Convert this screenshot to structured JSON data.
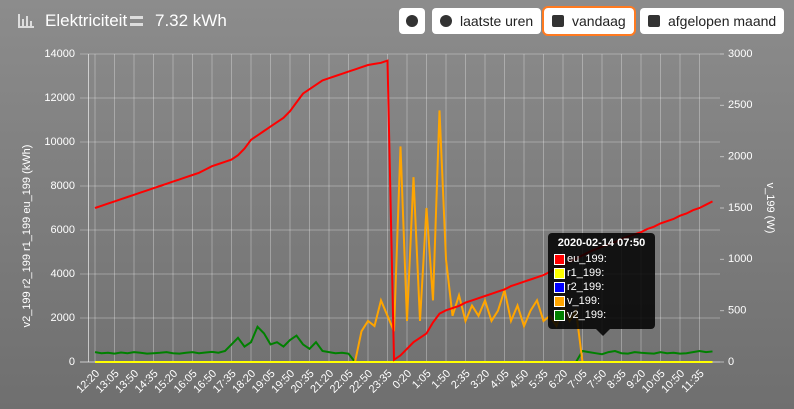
{
  "header": {
    "title": "Elektriciteit",
    "total": "7.32 kWh",
    "buttons": [
      "laatste uren",
      "vandaag",
      "afgelopen maand"
    ]
  },
  "chart_data": {
    "type": "line",
    "y_label": "v2_199 r2_199 r1_199 eu_199 (kWh)",
    "y2_label": "v_199 (W)",
    "categories": [
      "12:20",
      null,
      null,
      "13:05",
      null,
      null,
      "13:50",
      null,
      null,
      "14:35",
      null,
      null,
      "15:20",
      null,
      null,
      "16:05",
      null,
      null,
      "16:50",
      null,
      null,
      "17:35",
      null,
      null,
      "18:20",
      null,
      null,
      "19:05",
      null,
      null,
      "19:50",
      null,
      null,
      "20:35",
      null,
      null,
      "21:20",
      null,
      null,
      "22:05",
      null,
      null,
      "22:50",
      null,
      null,
      "23:35",
      null,
      null,
      "0:20",
      null,
      null,
      "1:05",
      null,
      null,
      "1:50",
      null,
      null,
      "2:35",
      null,
      null,
      "3:20",
      null,
      null,
      "4:05",
      null,
      null,
      "4:50",
      null,
      null,
      "5:35",
      null,
      null,
      "6:20",
      null,
      null,
      "7:05",
      null,
      null,
      "7:50",
      null,
      null,
      "8:35",
      null,
      null,
      "9:20",
      null,
      null,
      "10:05",
      null,
      null,
      "10:50",
      null,
      null,
      "11:35",
      null,
      null
    ],
    "ylim": [
      0,
      14000
    ],
    "yticks": [
      0,
      2000,
      4000,
      6000,
      8000,
      10000,
      12000,
      14000
    ],
    "y2lim": [
      0,
      3000
    ],
    "y2ticks": [
      0,
      500,
      1000,
      1500,
      2000,
      2500,
      3000
    ],
    "grid": true,
    "series": [
      {
        "name": "eu_199",
        "color": "#ff0000",
        "axis": "y",
        "values": [
          7000,
          7100,
          7200,
          7300,
          7400,
          7500,
          7600,
          7700,
          7800,
          7900,
          8000,
          8100,
          8200,
          8300,
          8400,
          8500,
          8600,
          8750,
          8900,
          9000,
          9100,
          9200,
          9400,
          9700,
          10100,
          10300,
          10500,
          10700,
          10900,
          11100,
          11400,
          11800,
          12200,
          12400,
          12600,
          12800,
          12900,
          13000,
          13100,
          13200,
          13300,
          13400,
          13500,
          13550,
          13600,
          13700,
          100,
          300,
          600,
          900,
          1100,
          1300,
          1800,
          2200,
          2350,
          2450,
          2550,
          2700,
          2800,
          2900,
          3000,
          3100,
          3200,
          3300,
          3450,
          3550,
          3650,
          3750,
          3850,
          3950,
          4100,
          4250,
          4400,
          4550,
          4700,
          4850,
          5000,
          5120,
          5241,
          5350,
          5450,
          5600,
          5700,
          5800,
          5900,
          6050,
          6150,
          6300,
          6400,
          6500,
          6650,
          6750,
          6900,
          7000,
          7150,
          7300
        ]
      },
      {
        "name": "r1_199",
        "color": "#ffff00",
        "axis": "y",
        "values": [
          0,
          0,
          0,
          0,
          0,
          0,
          0,
          0,
          0,
          0,
          0,
          0,
          0,
          0,
          0,
          0,
          0,
          0,
          0,
          0,
          0,
          0,
          0,
          0,
          0,
          0,
          0,
          0,
          0,
          0,
          0,
          0,
          0,
          0,
          0,
          0,
          0,
          0,
          0,
          0,
          0,
          0,
          0,
          0,
          0,
          0,
          0,
          0,
          0,
          0,
          0,
          0,
          0,
          0,
          0,
          0,
          0,
          0,
          0,
          0,
          0,
          0,
          0,
          0,
          0,
          0,
          0,
          0,
          0,
          0,
          0,
          0,
          0,
          0,
          0,
          0,
          0,
          0,
          0,
          0,
          0,
          0,
          0,
          0,
          0,
          0,
          0,
          0,
          0,
          0,
          0,
          0,
          0,
          0,
          0,
          0
        ]
      },
      {
        "name": "r2_199",
        "color": "#0000ff",
        "axis": "y",
        "values": [
          0,
          0,
          0,
          0,
          0,
          0,
          0,
          0,
          0,
          0,
          0,
          0,
          0,
          0,
          0,
          0,
          0,
          0,
          0,
          0,
          0,
          0,
          0,
          0,
          0,
          0,
          0,
          0,
          0,
          0,
          0,
          0,
          0,
          0,
          0,
          0,
          0,
          0,
          0,
          0,
          0,
          0,
          0,
          0,
          0,
          0,
          0,
          0,
          0,
          0,
          0,
          0,
          0,
          0,
          0,
          0,
          0,
          0,
          0,
          0,
          0,
          0,
          0,
          0,
          0,
          0,
          0,
          0,
          0,
          0,
          0,
          0,
          0,
          0,
          0,
          0,
          0,
          0,
          0,
          0,
          0,
          0,
          0,
          0,
          0,
          0,
          0,
          0,
          0,
          0,
          0,
          0,
          0,
          0,
          0,
          0
        ]
      },
      {
        "name": "v_199",
        "color": "#ffa500",
        "axis": "y2",
        "values": [
          0,
          0,
          0,
          0,
          0,
          0,
          0,
          0,
          0,
          0,
          0,
          0,
          0,
          0,
          0,
          0,
          0,
          0,
          0,
          0,
          0,
          0,
          0,
          0,
          0,
          0,
          0,
          0,
          0,
          0,
          0,
          0,
          0,
          0,
          0,
          0,
          0,
          0,
          0,
          0,
          0,
          300,
          400,
          350,
          600,
          450,
          300,
          2100,
          400,
          1800,
          400,
          1500,
          600,
          2450,
          1000,
          450,
          650,
          400,
          550,
          450,
          600,
          400,
          500,
          700,
          400,
          550,
          350,
          500,
          600,
          400,
          450,
          350,
          550,
          400,
          500,
          0,
          0,
          0,
          0,
          0,
          0,
          0,
          0,
          0,
          0,
          0,
          0,
          0,
          0,
          0,
          0,
          0,
          0,
          0,
          0,
          0
        ]
      },
      {
        "name": "v2_199",
        "color": "#008000",
        "axis": "y",
        "values": [
          450,
          400,
          420,
          380,
          430,
          400,
          450,
          420,
          380,
          400,
          420,
          450,
          400,
          380,
          420,
          450,
          400,
          430,
          460,
          420,
          500,
          800,
          1100,
          700,
          900,
          1600,
          1300,
          800,
          900,
          700,
          1000,
          1200,
          800,
          600,
          900,
          500,
          450,
          400,
          420,
          380,
          0,
          0,
          0,
          0,
          0,
          0,
          0,
          0,
          0,
          0,
          0,
          0,
          0,
          0,
          0,
          0,
          0,
          0,
          0,
          0,
          0,
          0,
          0,
          0,
          0,
          0,
          0,
          0,
          0,
          0,
          0,
          0,
          0,
          0,
          0,
          500,
          450,
          400,
          352,
          450,
          500,
          400,
          380,
          450,
          420,
          400,
          380,
          450,
          400,
          420,
          380,
          400,
          450,
          500,
          450,
          480
        ]
      }
    ],
    "tooltip": {
      "title": "2020-02-14 07:50"
    }
  }
}
